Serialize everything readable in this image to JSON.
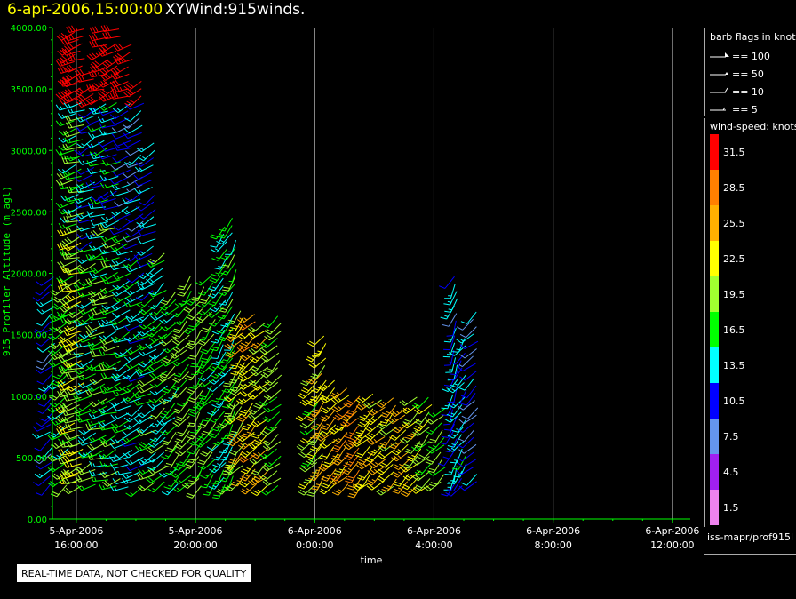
{
  "header": {
    "time_label": "6-apr-2006,15:00:00",
    "product_label": "XYWind:915winds."
  },
  "chart_data": {
    "type": "wind-barb-time-height",
    "ylabel": "915 Profiler Altitude (m agl)",
    "xlabel": "time",
    "ylim": [
      0,
      4000
    ],
    "y_ticks": [
      0,
      500,
      1000,
      1500,
      2000,
      2500,
      3000,
      3500,
      4000
    ],
    "y_tick_labels": [
      "0.00",
      "500.00",
      "1000.00",
      "1500.00",
      "2000.00",
      "2500.00",
      "3000.00",
      "3500.00",
      "4000.00"
    ],
    "x_range_hours": [
      15.2,
      36.6
    ],
    "x_ticks": [
      {
        "hour": 16,
        "date": "5-Apr-2006",
        "time": "16:00:00"
      },
      {
        "hour": 20,
        "date": "5-Apr-2006",
        "time": "20:00:00"
      },
      {
        "hour": 24,
        "date": "6-Apr-2006",
        "time": "0:00:00"
      },
      {
        "hour": 28,
        "date": "6-Apr-2006",
        "time": "4:00:00"
      },
      {
        "hour": 32,
        "date": "6-Apr-2006",
        "time": "8:00:00"
      },
      {
        "hour": 36,
        "date": "6-Apr-2006",
        "time": "12:00:00"
      }
    ],
    "grid": "vertical",
    "colors": {
      "axis": "#00ff00",
      "grid": "#b0b0b0"
    },
    "profiles": [
      {
        "hour": 15.2,
        "top": 2000,
        "dir": 230,
        "speed": 11
      },
      {
        "hour": 15.7,
        "top": 1900,
        "dir": 235,
        "speed": 17
      },
      {
        "hour": 16.0,
        "top": 4000,
        "dir": 250,
        "speed": 20
      },
      {
        "hour": 16.2,
        "top": 4000,
        "dir": 250,
        "speed": 21
      },
      {
        "hour": 16.6,
        "top": 3700,
        "dir": 245,
        "speed": 16
      },
      {
        "hour": 17.0,
        "top": 4000,
        "dir": 250,
        "speed": 17
      },
      {
        "hour": 17.4,
        "top": 4000,
        "dir": 248,
        "speed": 17
      },
      {
        "hour": 17.8,
        "top": 3900,
        "dir": 245,
        "speed": 15
      },
      {
        "hour": 18.2,
        "top": 3600,
        "dir": 240,
        "speed": 14
      },
      {
        "hour": 18.6,
        "top": 3100,
        "dir": 240,
        "speed": 16
      },
      {
        "hour": 19.0,
        "top": 2200,
        "dir": 230,
        "speed": 16
      },
      {
        "hour": 19.4,
        "top": 1900,
        "dir": 225,
        "speed": 17
      },
      {
        "hour": 19.8,
        "top": 2000,
        "dir": 220,
        "speed": 18
      },
      {
        "hour": 20.2,
        "top": 1900,
        "dir": 215,
        "speed": 18
      },
      {
        "hour": 20.6,
        "top": 2000,
        "dir": 220,
        "speed": 17
      },
      {
        "hour": 21.0,
        "top": 2400,
        "dir": 215,
        "speed": 15
      },
      {
        "hour": 21.3,
        "top": 2500,
        "dir": 210,
        "speed": 16
      },
      {
        "hour": 21.6,
        "top": 1700,
        "dir": 220,
        "speed": 22
      },
      {
        "hour": 22.0,
        "top": 1700,
        "dir": 225,
        "speed": 25
      },
      {
        "hour": 22.4,
        "top": 1650,
        "dir": 230,
        "speed": 22
      },
      {
        "hour": 22.8,
        "top": 1700,
        "dir": 230,
        "speed": 18
      },
      {
        "hour": 24.0,
        "top": 1200,
        "dir": 220,
        "speed": 20
      },
      {
        "hour": 24.3,
        "top": 1500,
        "dir": 215,
        "speed": 23
      },
      {
        "hour": 24.7,
        "top": 1150,
        "dir": 225,
        "speed": 24
      },
      {
        "hour": 25.1,
        "top": 1100,
        "dir": 225,
        "speed": 26
      },
      {
        "hour": 25.5,
        "top": 1050,
        "dir": 225,
        "speed": 27
      },
      {
        "hour": 25.9,
        "top": 1050,
        "dir": 225,
        "speed": 24
      },
      {
        "hour": 26.3,
        "top": 1000,
        "dir": 225,
        "speed": 23
      },
      {
        "hour": 26.7,
        "top": 1000,
        "dir": 225,
        "speed": 23
      },
      {
        "hour": 27.1,
        "top": 950,
        "dir": 225,
        "speed": 24
      },
      {
        "hour": 27.5,
        "top": 1000,
        "dir": 225,
        "speed": 22
      },
      {
        "hour": 27.9,
        "top": 1000,
        "dir": 225,
        "speed": 20
      },
      {
        "hour": 28.3,
        "top": 950,
        "dir": 225,
        "speed": 18
      },
      {
        "hour": 28.7,
        "top": 2000,
        "dir": 205,
        "speed": 11
      },
      {
        "hour": 29.0,
        "top": 1500,
        "dir": 215,
        "speed": 13
      },
      {
        "hour": 29.4,
        "top": 1700,
        "dir": 230,
        "speed": 10
      }
    ]
  },
  "legend": {
    "barb_title": "barb flags in knots",
    "barbs": [
      {
        "label": "== 100",
        "kind": "flag100"
      },
      {
        "label": "== 50",
        "kind": "flag50"
      },
      {
        "label": "== 10",
        "kind": "barb10"
      },
      {
        "label": "== 5",
        "kind": "barb5"
      }
    ],
    "speed_title": "wind-speed: knots",
    "speed_bins": [
      {
        "label": "31.5",
        "color": "#ff0000"
      },
      {
        "label": "28.5",
        "color": "#ff8000"
      },
      {
        "label": "25.5",
        "color": "#ffb000"
      },
      {
        "label": "22.5",
        "color": "#ffff00"
      },
      {
        "label": "19.5",
        "color": "#a0ff30"
      },
      {
        "label": "16.5",
        "color": "#00ff00"
      },
      {
        "label": "13.5",
        "color": "#00ffff"
      },
      {
        "label": "10.5",
        "color": "#0000ff"
      },
      {
        "label": "7.5",
        "color": "#6495ed"
      },
      {
        "label": "4.5",
        "color": "#a020f0"
      },
      {
        "label": "1.5",
        "color": "#ee82ee"
      }
    ]
  },
  "footer": {
    "source": "iss-mapr/prof915l",
    "warning": "REAL-TIME DATA, NOT CHECKED FOR QUALITY"
  }
}
